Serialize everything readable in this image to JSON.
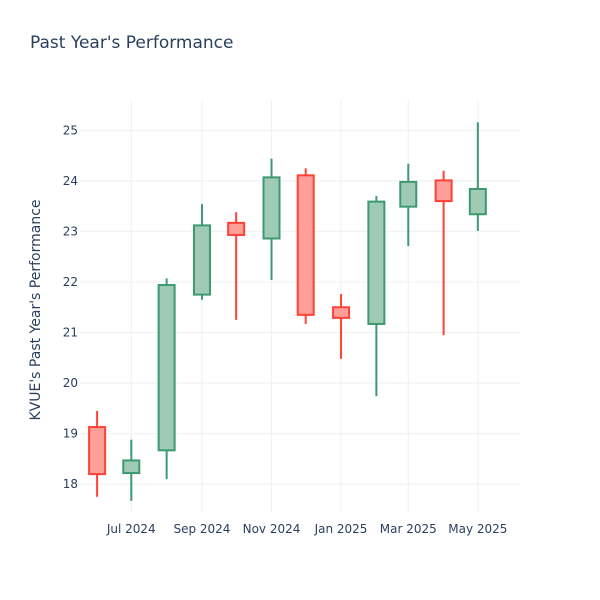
{
  "chart_data": {
    "type": "candlestick",
    "title": "Past Year's Performance",
    "xlabel": "",
    "ylabel": "KVUE's Past Year's Performance",
    "ylim": [
      17.45,
      25.6
    ],
    "xlim": [
      "2024-05-17",
      "2025-06-07"
    ],
    "y_ticks": [
      18,
      19,
      20,
      21,
      22,
      23,
      24,
      25
    ],
    "x_ticks": [
      {
        "date": "2024-07-01",
        "label": "Jul 2024"
      },
      {
        "date": "2024-09-01",
        "label": "Sep 2024"
      },
      {
        "date": "2024-11-01",
        "label": "Nov 2024"
      },
      {
        "date": "2025-01-01",
        "label": "Jan 2025"
      },
      {
        "date": "2025-03-01",
        "label": "Mar 2025"
      },
      {
        "date": "2025-05-01",
        "label": "May 2025"
      }
    ],
    "grid": true,
    "colors": {
      "increasing": "#3d9970",
      "increasing_fill": "#9ecab6",
      "decreasing": "#ff4136",
      "decreasing_fill": "#ff9f9a"
    },
    "candles": [
      {
        "date": "2024-06-01",
        "open": 19.13,
        "high": 19.45,
        "low": 17.75,
        "close": 18.2
      },
      {
        "date": "2024-07-01",
        "open": 18.22,
        "high": 18.88,
        "low": 17.67,
        "close": 18.47
      },
      {
        "date": "2024-08-01",
        "open": 18.67,
        "high": 22.07,
        "low": 18.1,
        "close": 21.94
      },
      {
        "date": "2024-09-01",
        "open": 21.75,
        "high": 23.54,
        "low": 21.65,
        "close": 23.12
      },
      {
        "date": "2024-10-01",
        "open": 23.17,
        "high": 23.38,
        "low": 21.25,
        "close": 22.93
      },
      {
        "date": "2024-11-01",
        "open": 22.86,
        "high": 24.44,
        "low": 22.04,
        "close": 24.07
      },
      {
        "date": "2024-12-01",
        "open": 24.11,
        "high": 24.25,
        "low": 21.17,
        "close": 21.35
      },
      {
        "date": "2025-01-01",
        "open": 21.5,
        "high": 21.76,
        "low": 20.48,
        "close": 21.29
      },
      {
        "date": "2025-02-01",
        "open": 21.17,
        "high": 23.7,
        "low": 19.74,
        "close": 23.59
      },
      {
        "date": "2025-03-01",
        "open": 23.49,
        "high": 24.34,
        "low": 22.71,
        "close": 23.98
      },
      {
        "date": "2025-04-01",
        "open": 24.01,
        "high": 24.2,
        "low": 20.95,
        "close": 23.6
      },
      {
        "date": "2025-05-01",
        "open": 23.34,
        "high": 25.16,
        "low": 23.01,
        "close": 23.84
      }
    ]
  }
}
